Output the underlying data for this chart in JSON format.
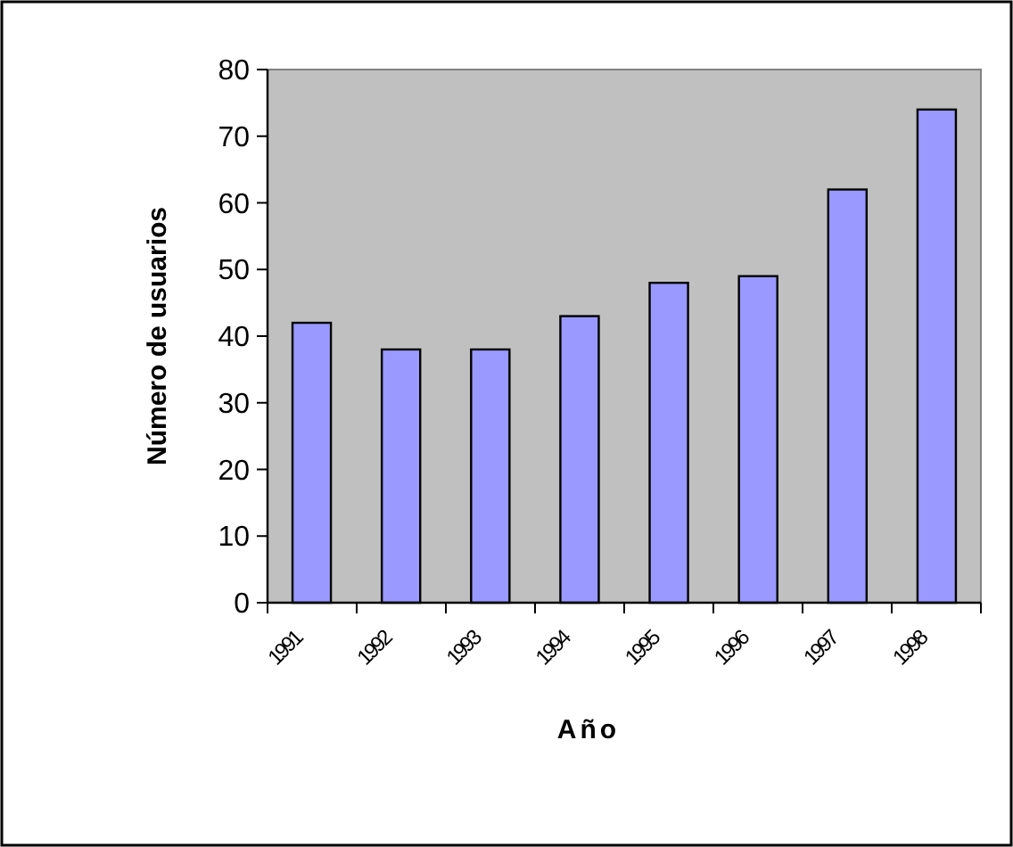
{
  "chart_data": {
    "type": "bar",
    "xlabel": "Año",
    "ylabel": "Número de usuarios",
    "categories": [
      "1991",
      "1992",
      "1993",
      "1994",
      "1995",
      "1996",
      "1997",
      "1998"
    ],
    "values": [
      42,
      38,
      38,
      43,
      48,
      49,
      62,
      74
    ],
    "color": "#9999ff",
    "ylim": [
      0,
      80
    ],
    "yticks": [
      0,
      10,
      20,
      30,
      40,
      50,
      60,
      70,
      80
    ],
    "grid": false
  }
}
